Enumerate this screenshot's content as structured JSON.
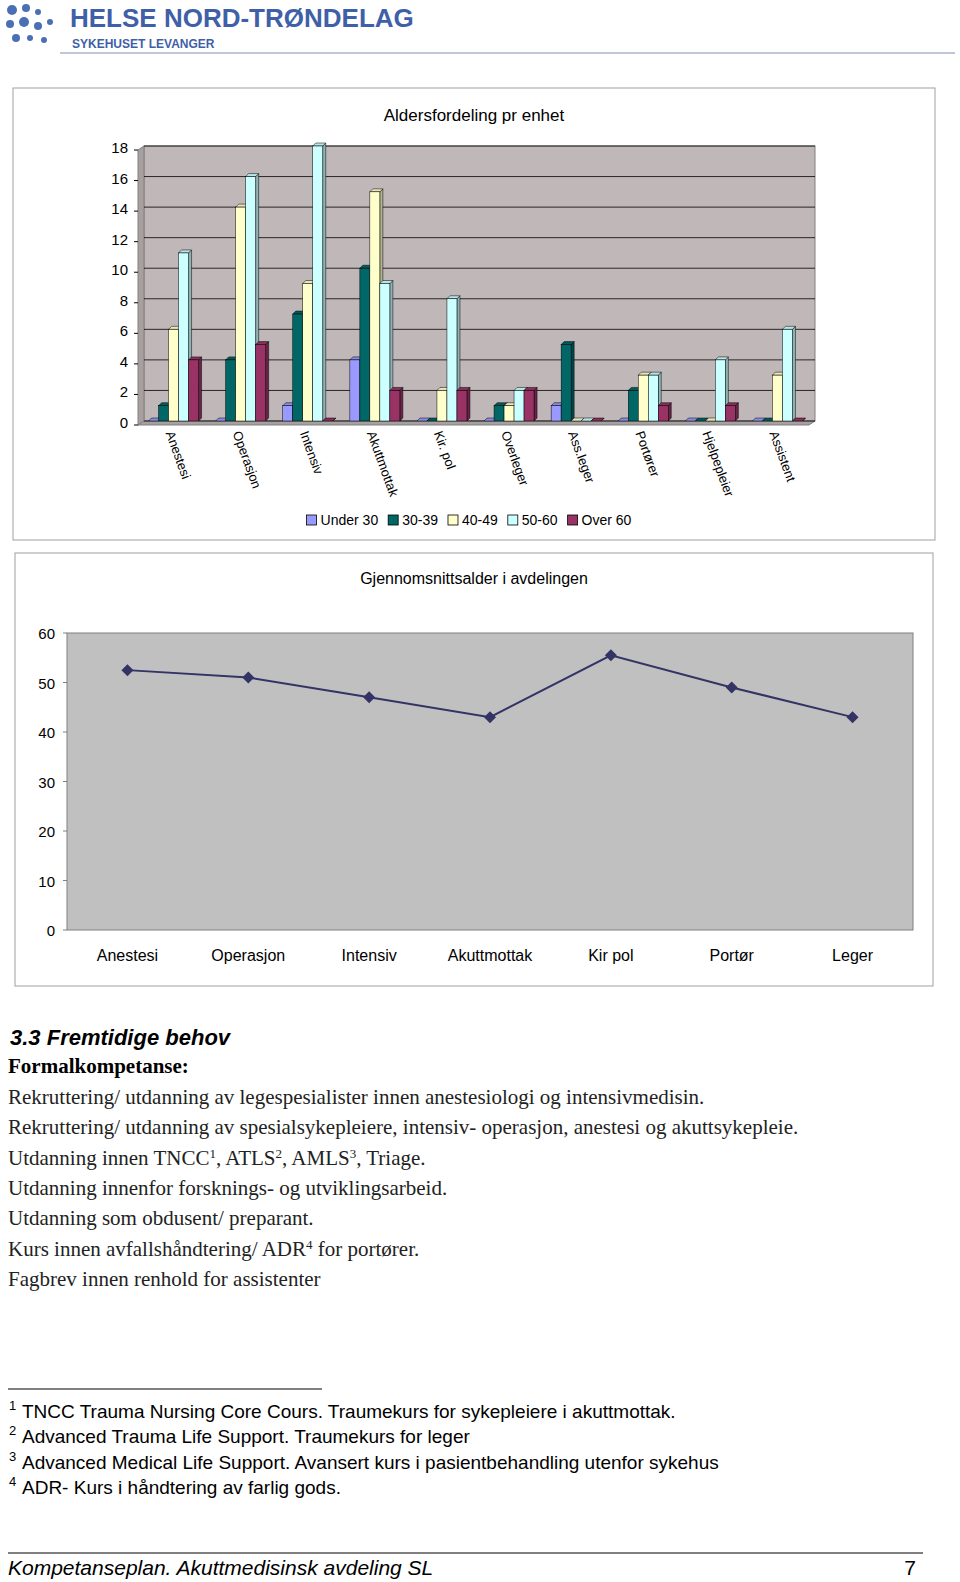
{
  "header": {
    "title": "HELSE NORD-TRØNDELAG",
    "subtitle": "SYKEHUSET LEVANGER"
  },
  "chart_data": [
    {
      "type": "bar",
      "title": "Aldersfordeling pr enhet",
      "categories": [
        "Anestesi",
        "Operasjon",
        "Intensiv",
        "Akuttmottak",
        "Kir. pol",
        "Overleger",
        "Ass.leger",
        "Portører",
        "Hjelpepleier",
        "Assistent"
      ],
      "series": [
        {
          "name": "Under 30",
          "color": "#9999ff",
          "values": [
            0,
            0,
            1,
            4,
            0,
            0,
            1,
            0,
            0,
            0
          ]
        },
        {
          "name": "30-39",
          "color": "#006666",
          "values": [
            1,
            4,
            7,
            10,
            0,
            1,
            5,
            2,
            0,
            0
          ]
        },
        {
          "name": "40-49",
          "color": "#ffffcc",
          "values": [
            6,
            14,
            9,
            15,
            2,
            1,
            0,
            3,
            0,
            3
          ]
        },
        {
          "name": "50-60",
          "color": "#ccffff",
          "values": [
            11,
            16,
            18,
            9,
            8,
            2,
            0,
            3,
            4,
            6
          ]
        },
        {
          "name": "Over 60",
          "color": "#993366",
          "values": [
            4,
            5,
            0,
            2,
            2,
            2,
            0,
            1,
            1,
            0
          ]
        }
      ],
      "ylim": [
        0,
        18
      ],
      "yticks": [
        0,
        2,
        4,
        6,
        8,
        10,
        12,
        14,
        16,
        18
      ],
      "grid": true,
      "legend": "bottom"
    },
    {
      "type": "line",
      "title": "Gjennomsnittsalder i avdelingen",
      "categories": [
        "Anestesi",
        "Operasjon",
        "Intensiv",
        "Akuttmottak",
        "Kir pol",
        "Portør",
        "Leger"
      ],
      "values": [
        52.5,
        51,
        47,
        43,
        55.5,
        49,
        43
      ],
      "color": "#333366",
      "marker": "diamond",
      "ylim": [
        0,
        60
      ],
      "yticks": [
        0,
        10,
        20,
        30,
        40,
        50,
        60
      ],
      "grid": false
    }
  ],
  "section": {
    "heading": "3.3 Fremtidige behov",
    "subheading": "Formalkompetanse:",
    "lines": [
      [
        {
          "text": "Rekruttering/ utdanning av legespesialister innen anestesiologi og intensivmedisin."
        }
      ],
      [
        {
          "text": "Rekruttering/ utdanning av spesialsykepleiere, intensiv- operasjon, anestesi og akuttsykepleie."
        }
      ],
      [
        {
          "text": "Utdanning innen TNCC"
        },
        {
          "sup": "1"
        },
        {
          "text": ", ATLS"
        },
        {
          "sup": "2"
        },
        {
          "text": ", AMLS"
        },
        {
          "sup": "3"
        },
        {
          "text": ", Triage."
        }
      ],
      [
        {
          "text": "Utdanning innenfor forsknings- og utviklingsarbeid."
        }
      ],
      [
        {
          "text": "Utdanning som obdusent/ preparant."
        }
      ],
      [
        {
          "text": "Kurs innen avfallshåndtering/ ADR"
        },
        {
          "sup": "4"
        },
        {
          "text": " for portører."
        }
      ],
      [
        {
          "text": "Fagbrev innen renhold for assistenter"
        }
      ]
    ]
  },
  "footnotes": [
    {
      "number": "1",
      "text": "TNCC Trauma Nursing Core Cours. Traumekurs for sykepleiere i akuttmottak."
    },
    {
      "number": "2",
      "text": "Advanced Trauma Life Support. Traumekurs for leger"
    },
    {
      "number": "3",
      "text": "Advanced Medical Life Support. Avansert kurs i pasientbehandling utenfor sykehus"
    },
    {
      "number": "4",
      "text": "ADR- Kurs i håndtering av farlig gods."
    }
  ],
  "footer": {
    "text": "Kompetanseplan. Akuttmedisinsk avdeling SL",
    "page": "7"
  }
}
